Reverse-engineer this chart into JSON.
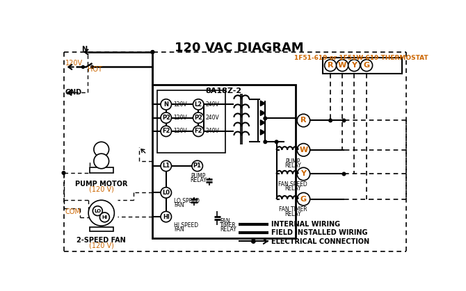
{
  "title": "120 VAC DIAGRAM",
  "bg_color": "#ffffff",
  "black": "#000000",
  "orange": "#cc6600",
  "thermostat_label": "1F51-619 or 1F51W-619 THERMOSTAT",
  "box_label": "8A18Z-2",
  "legend": [
    "INTERNAL WIRING",
    "FIELD INSTALLED WIRING",
    "ELECTRICAL CONNECTION"
  ],
  "t_terminals": [
    "R",
    "W",
    "Y",
    "G"
  ],
  "left120": [
    "N",
    "P2",
    "F2"
  ],
  "left240": [
    "L2",
    "P2",
    "F2"
  ]
}
